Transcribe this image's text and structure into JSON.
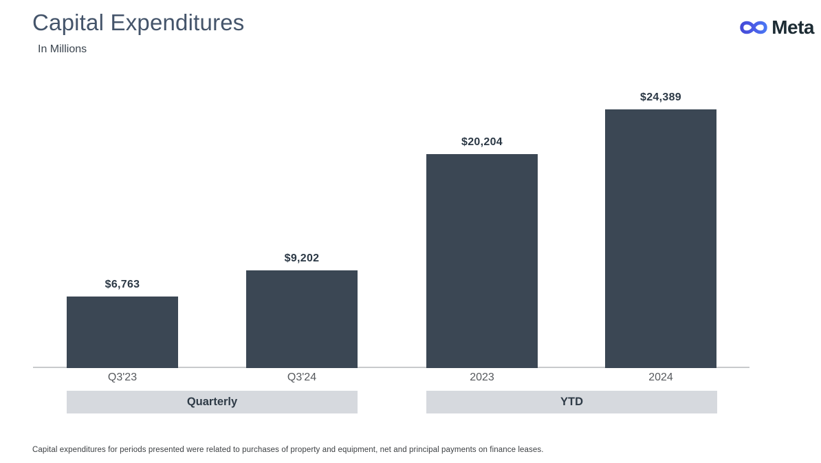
{
  "header": {
    "title": "Capital Expenditures",
    "subtitle": "In Millions"
  },
  "brand": {
    "name": "Meta"
  },
  "chart_data": {
    "type": "bar",
    "title": "Capital Expenditures",
    "units": "In Millions",
    "categories": [
      "Q3'23",
      "Q3'24",
      "2023",
      "2024"
    ],
    "values": [
      6763,
      9202,
      20204,
      24389
    ],
    "value_labels": [
      "$6,763",
      "$9,202",
      "$20,204",
      "$24,389"
    ],
    "groups": [
      {
        "label": "Quarterly",
        "categories": [
          "Q3'23",
          "Q3'24"
        ]
      },
      {
        "label": "YTD",
        "categories": [
          "2023",
          "2024"
        ]
      }
    ],
    "xlabel": "",
    "ylabel": "",
    "ylim": [
      0,
      24389
    ],
    "grid": false,
    "legend": false,
    "bar_color": "#3B4754"
  },
  "footnote": "Capital expenditures for periods presented were related to purchases of property and equipment, net and principal payments on finance leases.",
  "colors": {
    "bar": "#3B4754",
    "axis_line": "#C8CACC",
    "group_box_bg": "#D6D9DE",
    "title_text": "#44546A",
    "value_text": "#2B3845",
    "category_text": "#55585C",
    "brand_text": "#1C2B33",
    "logo_gradient_start": "#4348D4",
    "logo_gradient_end": "#4A7CF6",
    "footnote_text": "#3D4043"
  }
}
